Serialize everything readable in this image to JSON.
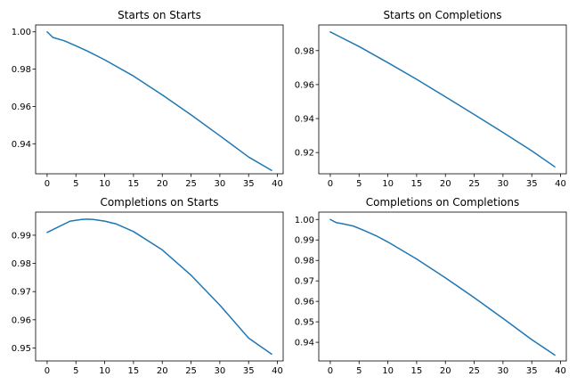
{
  "figure": {
    "line_color": "#1f77b4"
  },
  "chart_data": [
    {
      "type": "line",
      "title": "Starts on Starts",
      "xlabel": "",
      "ylabel": "",
      "xlim": [
        -2,
        41
      ],
      "ylim": [
        0.9239,
        1.0037
      ],
      "xticks": [
        0,
        5,
        10,
        15,
        20,
        25,
        30,
        35,
        40
      ],
      "xtick_labels": [
        "0",
        "5",
        "10",
        "15",
        "20",
        "25",
        "30",
        "35",
        "40"
      ],
      "yticks": [
        0.94,
        0.96,
        0.98,
        1.0
      ],
      "ytick_labels": [
        "0.94",
        "0.96",
        "0.98",
        "1.00"
      ],
      "grid": false,
      "series": [
        {
          "x": [
            0,
            1,
            3,
            5,
            7,
            10,
            15,
            20,
            25,
            30,
            35,
            39
          ],
          "y": [
            1.0,
            0.997,
            0.9952,
            0.9925,
            0.9897,
            0.985,
            0.9763,
            0.9662,
            0.9555,
            0.9443,
            0.9329,
            0.9257
          ]
        }
      ]
    },
    {
      "type": "line",
      "title": "Starts on Completions",
      "xlabel": "",
      "ylabel": "",
      "xlim": [
        -2,
        41
      ],
      "ylim": [
        0.9075,
        0.9951
      ],
      "xticks": [
        0,
        5,
        10,
        15,
        20,
        25,
        30,
        35,
        40
      ],
      "xtick_labels": [
        "0",
        "5",
        "10",
        "15",
        "20",
        "25",
        "30",
        "35",
        "40"
      ],
      "yticks": [
        0.92,
        0.94,
        0.96,
        0.98
      ],
      "ytick_labels": [
        "0.92",
        "0.94",
        "0.96",
        "0.98"
      ],
      "grid": false,
      "series": [
        {
          "x": [
            0,
            5,
            10,
            15,
            20,
            25,
            30,
            35,
            39
          ],
          "y": [
            0.991,
            0.9824,
            0.9729,
            0.9631,
            0.9528,
            0.9424,
            0.9318,
            0.921,
            0.9116
          ]
        }
      ]
    },
    {
      "type": "line",
      "title": "Completions on Starts",
      "xlabel": "",
      "ylabel": "",
      "xlim": [
        -2,
        41
      ],
      "ylim": [
        0.9454,
        0.9982
      ],
      "xticks": [
        0,
        5,
        10,
        15,
        20,
        25,
        30,
        35,
        40
      ],
      "xtick_labels": [
        "0",
        "5",
        "10",
        "15",
        "20",
        "25",
        "30",
        "35",
        "40"
      ],
      "yticks": [
        0.95,
        0.96,
        0.97,
        0.98,
        0.99
      ],
      "ytick_labels": [
        "0.95",
        "0.96",
        "0.97",
        "0.98",
        "0.99"
      ],
      "grid": false,
      "series": [
        {
          "x": [
            0,
            2,
            4,
            6,
            7,
            8,
            10,
            12,
            15,
            20,
            25,
            30,
            35,
            39
          ],
          "y": [
            0.991,
            0.993,
            0.995,
            0.9956,
            0.9957,
            0.9956,
            0.995,
            0.994,
            0.9913,
            0.9848,
            0.9758,
            0.9652,
            0.9535,
            0.9478
          ]
        }
      ]
    },
    {
      "type": "line",
      "title": "Completions on Completions",
      "xlabel": "",
      "ylabel": "",
      "xlim": [
        -2,
        41
      ],
      "ylim": [
        0.9309,
        1.0036
      ],
      "xticks": [
        0,
        5,
        10,
        15,
        20,
        25,
        30,
        35,
        40
      ],
      "xtick_labels": [
        "0",
        "5",
        "10",
        "15",
        "20",
        "25",
        "30",
        "35",
        "40"
      ],
      "yticks": [
        0.94,
        0.95,
        0.96,
        0.97,
        0.98,
        0.99,
        1.0
      ],
      "ytick_labels": [
        "0.94",
        "0.95",
        "0.96",
        "0.97",
        "0.98",
        "0.99",
        "1.00"
      ],
      "grid": false,
      "series": [
        {
          "x": [
            0,
            1,
            2,
            4,
            6,
            8,
            10,
            15,
            20,
            25,
            30,
            35,
            39
          ],
          "y": [
            1.0,
            0.9985,
            0.998,
            0.9968,
            0.9945,
            0.992,
            0.989,
            0.9807,
            0.9715,
            0.9618,
            0.9517,
            0.9413,
            0.9338
          ]
        }
      ]
    }
  ]
}
